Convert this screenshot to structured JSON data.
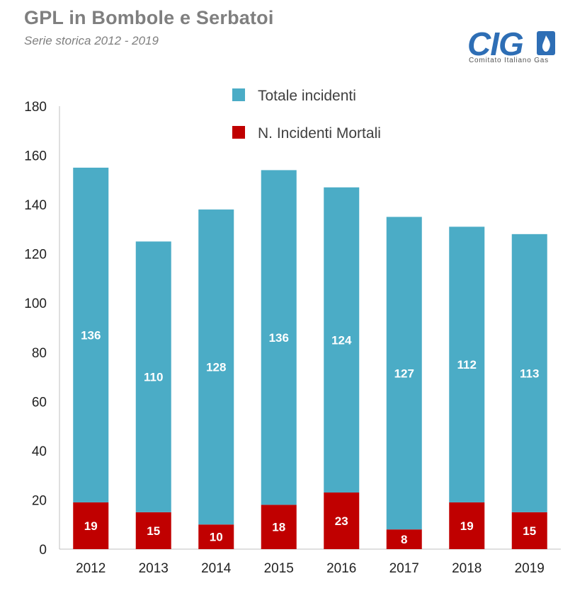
{
  "header": {
    "title": "GPL in Bombole e Serbatoi",
    "subtitle": "Serie storica 2012 - 2019"
  },
  "logo": {
    "text": "CIG",
    "subtext": "Comitato Italiano Gas",
    "color": "#2e6eb5"
  },
  "chart_data": {
    "type": "bar",
    "stacked": true,
    "title": "GPL in Bombole e Serbatoi",
    "subtitle": "Serie storica 2012 - 2019",
    "xlabel": "",
    "ylabel": "",
    "ylim": [
      0,
      180
    ],
    "yticks": [
      0,
      20,
      40,
      60,
      80,
      100,
      120,
      140,
      160,
      180
    ],
    "categories": [
      "2012",
      "2013",
      "2014",
      "2015",
      "2016",
      "2017",
      "2018",
      "2019"
    ],
    "legend_position": "top",
    "grid": false,
    "series": [
      {
        "name": "N. Incidenti Mortali",
        "color": "#c00000",
        "values": [
          19,
          15,
          10,
          18,
          23,
          8,
          19,
          15
        ],
        "labels": [
          "19",
          "15",
          "10",
          "18",
          "23",
          "8",
          "19",
          "15"
        ]
      },
      {
        "name": "Totale incidenti",
        "color": "#4bacc6",
        "values": [
          136,
          110,
          128,
          136,
          124,
          127,
          112,
          113
        ],
        "labels": [
          "136",
          "110",
          "128",
          "136",
          "124",
          "127",
          "112",
          "113"
        ]
      }
    ]
  }
}
